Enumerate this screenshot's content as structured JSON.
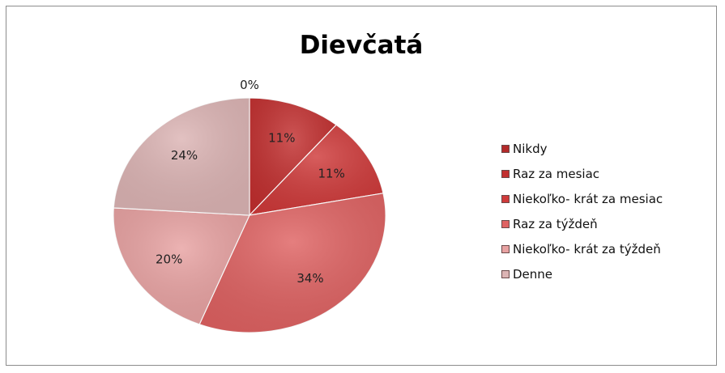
{
  "chart_data": {
    "type": "pie",
    "title": "Dievčatá",
    "slices": [
      {
        "name": "Nikdy",
        "value": 0,
        "label": "0%",
        "color": "#b32a2a"
      },
      {
        "name": "Raz za mesiac",
        "value": 11,
        "label": "11%",
        "color": "#c22f2f"
      },
      {
        "name": "Niekoľko- krát za mesiac",
        "value": 11,
        "label": "11%",
        "color": "#cf3a3a"
      },
      {
        "name": "Raz za týždeň",
        "value": 34,
        "label": "34%",
        "color": "#df6262"
      },
      {
        "name": "Niekoľko- krát za týždeň",
        "value": 20,
        "label": "20%",
        "color": "#e8a2a2"
      },
      {
        "name": "Denne",
        "value": 24,
        "label": "24%",
        "color": "#dcb4b4"
      }
    ],
    "legend_position": "right",
    "start_angle": "12 o'clock, clockwise"
  }
}
